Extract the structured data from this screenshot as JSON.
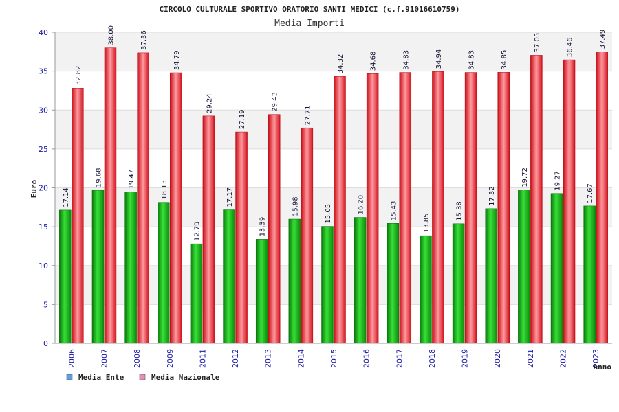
{
  "chart_data": {
    "type": "bar",
    "title": "CIRCOLO CULTURALE SPORTIVO ORATORIO SANTI MEDICI (c.f.91016610759)",
    "subtitle": "Media Importi",
    "xlabel": "Anno",
    "ylabel": "Euro",
    "ylim": [
      0,
      40
    ],
    "yticks": [
      0,
      5,
      10,
      15,
      20,
      25,
      30,
      35,
      40
    ],
    "grid": true,
    "legend_position": "bottom-left",
    "categories": [
      "2006",
      "2007",
      "2008",
      "2009",
      "2011",
      "2012",
      "2013",
      "2014",
      "2015",
      "2016",
      "2017",
      "2018",
      "2019",
      "2020",
      "2021",
      "2022",
      "2023"
    ],
    "series": [
      {
        "name": "Media Ente",
        "color": "#1fbf1f",
        "legend_color": "#5aa0e6",
        "values": [
          17.14,
          19.68,
          19.47,
          18.13,
          12.79,
          17.17,
          13.39,
          15.98,
          15.05,
          16.2,
          15.43,
          13.85,
          15.38,
          17.32,
          19.72,
          19.27,
          17.67
        ],
        "labels": [
          "17.14",
          "19.68",
          "19.47",
          "18.13",
          "12.79",
          "17.17",
          "13.39",
          "15.98",
          "15.05",
          "16.20",
          "15.43",
          "13.85",
          "15.38",
          "17.32",
          "19.72",
          "19.27",
          "17.67"
        ]
      },
      {
        "name": "Media Nazionale",
        "color": "#e8202a",
        "legend_color": "#e58fb6",
        "values": [
          32.82,
          38.0,
          37.36,
          34.79,
          29.24,
          27.19,
          29.43,
          27.71,
          34.32,
          34.68,
          34.83,
          34.94,
          34.83,
          34.85,
          37.05,
          36.46,
          37.49
        ],
        "labels": [
          "32.82",
          "38.00",
          "37.36",
          "34.79",
          "29.24",
          "27.19",
          "29.43",
          "27.71",
          "34.32",
          "34.68",
          "34.83",
          "34.94",
          "34.83",
          "34.85",
          "37.05",
          "36.46",
          "37.49"
        ]
      }
    ]
  }
}
